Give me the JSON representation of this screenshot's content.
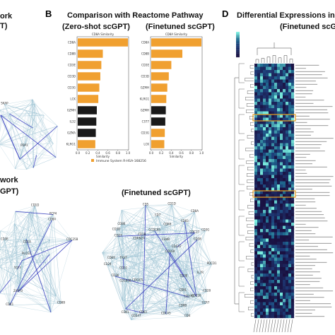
{
  "panels": {
    "a_left": {
      "title_line1": "ork",
      "title_line2": "T)"
    },
    "b": {
      "letter": "B",
      "title": "Comparison with Reactome Pathway",
      "sub_left": "(Zero-shot scGPT)",
      "sub_right": "(Finetuned scGPT)",
      "legend_label": "Immune System R-HSA-168256",
      "xlabel": "Similarity"
    },
    "c": {
      "title_left_1": "work",
      "title_left_2": "GPT)",
      "title_right": "(Finetuned scGPT)"
    },
    "d": {
      "letter": "D",
      "title_line1": "Differential Expressions in C",
      "title_line2": "(Finetuned scGP"
    }
  },
  "colors": {
    "bar_orange": "#f0a030",
    "bar_black": "#1a1a1a",
    "edge_light": "#9fc4d4",
    "edge_blue": "#3a3fc0",
    "heat_low": "#1a1040",
    "heat_mid": "#1f6b8f",
    "heat_high": "#7ef0e0",
    "highlight": "#e8a020"
  },
  "chart_data": [
    {
      "type": "bar",
      "orientation": "horizontal",
      "title": "CD8A Similarity",
      "xlabel": "Similarity",
      "xlim": [
        0,
        1.0
      ],
      "xticks": [
        "0.0",
        "0.2",
        "0.4",
        "0.6",
        "0.8",
        "1.0"
      ],
      "categories": [
        "CD8A",
        "CD8B",
        "CD3E",
        "CD3D",
        "CD3G",
        "LCK",
        "GZMH",
        "IL32",
        "GZMA",
        "KLRG1"
      ],
      "values": [
        1.0,
        0.5,
        0.47,
        0.45,
        0.43,
        0.41,
        0.38,
        0.37,
        0.36,
        0.35
      ],
      "colors": [
        "orange",
        "orange",
        "orange",
        "orange",
        "orange",
        "orange",
        "black",
        "black",
        "black",
        "orange"
      ]
    },
    {
      "type": "bar",
      "orientation": "horizontal",
      "title": "CD8A Similarity",
      "xlabel": "Similarity",
      "xlim": [
        0,
        1.0
      ],
      "xticks": [
        "0.0",
        "0.2",
        "0.4",
        "0.6",
        "0.8",
        "1.0"
      ],
      "categories": [
        "CD8A",
        "CD8B",
        "CD3E",
        "CD3D",
        "GZMH",
        "KLRG1",
        "GZMH",
        "CST7",
        "CD3G",
        "LCK"
      ],
      "values": [
        1.0,
        0.62,
        0.4,
        0.35,
        0.32,
        0.3,
        0.29,
        0.28,
        0.27,
        0.26
      ],
      "colors": [
        "orange",
        "orange",
        "orange",
        "orange",
        "orange",
        "orange",
        "black",
        "black",
        "orange",
        "orange"
      ]
    }
  ],
  "network_labels_c_left": [
    "CD8B",
    "CD8A",
    "CD3E",
    "CD3G",
    "TCF7",
    "PLCG1",
    "PCP4",
    "CD1A",
    "CD1D",
    "CDK1",
    "CDC25B",
    "ZAP70",
    "CDCA7L"
  ],
  "network_labels_c_right": [
    "CD8A",
    "CD8B",
    "CD3D",
    "CD3E",
    "CD3G",
    "CD8L",
    "CD4",
    "CD63",
    "CCDC85",
    "CD1C",
    "CD1B",
    "CD1D",
    "CDK1",
    "CDCA7L",
    "CD27",
    "CD28",
    "CD7",
    "CD69",
    "IL7R",
    "CCR7",
    "CD160",
    "TIGIT",
    "CDK6",
    "PDCD1",
    "CD38",
    "CD27B",
    "CDCA5",
    "CD24",
    "CD36",
    "CDCA7",
    "CD86",
    "CD226",
    "CD247",
    "CDKN2A",
    "CD160B",
    "CD83",
    "CDC27",
    "CD5",
    "CD4B"
  ],
  "network_labels_a": [
    "SKAP",
    "PDP1"
  ],
  "heatmap_rows": 80,
  "heatmap_cols": 14
}
